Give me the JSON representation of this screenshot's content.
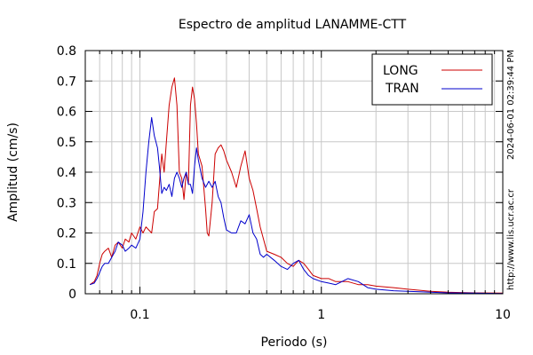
{
  "chart_data": {
    "type": "line",
    "title": "Espectro de amplitud LANAMME-CTT",
    "xlabel": "Periodo (s)",
    "ylabel": "Amplitud (cm/s)",
    "xscale": "log",
    "xlim": [
      0.05,
      10
    ],
    "ylim": [
      0,
      0.8
    ],
    "grid": true,
    "legend_position": "top-right",
    "x_tick_labels": [
      "0.1",
      "1",
      "10"
    ],
    "y_tick_labels": [
      "0",
      "0.1",
      "0.2",
      "0.3",
      "0.4",
      "0.5",
      "0.6",
      "0.7",
      "0.8"
    ],
    "side_text": "2024-06-01 02:39:44 PM",
    "url_text": "http://www.lis.ucr.ac.cr",
    "series": [
      {
        "name": "LONG",
        "color": "#cc0000",
        "points": [
          [
            0.053,
            0.03
          ],
          [
            0.056,
            0.04
          ],
          [
            0.058,
            0.06
          ],
          [
            0.06,
            0.1
          ],
          [
            0.062,
            0.13
          ],
          [
            0.064,
            0.14
          ],
          [
            0.067,
            0.15
          ],
          [
            0.07,
            0.12
          ],
          [
            0.073,
            0.16
          ],
          [
            0.076,
            0.17
          ],
          [
            0.08,
            0.15
          ],
          [
            0.083,
            0.18
          ],
          [
            0.087,
            0.17
          ],
          [
            0.09,
            0.2
          ],
          [
            0.095,
            0.18
          ],
          [
            0.1,
            0.22
          ],
          [
            0.104,
            0.2
          ],
          [
            0.108,
            0.22
          ],
          [
            0.112,
            0.21
          ],
          [
            0.116,
            0.2
          ],
          [
            0.12,
            0.27
          ],
          [
            0.125,
            0.28
          ],
          [
            0.128,
            0.36
          ],
          [
            0.132,
            0.46
          ],
          [
            0.136,
            0.4
          ],
          [
            0.14,
            0.5
          ],
          [
            0.145,
            0.62
          ],
          [
            0.15,
            0.68
          ],
          [
            0.155,
            0.71
          ],
          [
            0.16,
            0.62
          ],
          [
            0.165,
            0.4
          ],
          [
            0.17,
            0.38
          ],
          [
            0.175,
            0.31
          ],
          [
            0.18,
            0.4
          ],
          [
            0.185,
            0.36
          ],
          [
            0.19,
            0.62
          ],
          [
            0.195,
            0.68
          ],
          [
            0.2,
            0.64
          ],
          [
            0.205,
            0.56
          ],
          [
            0.21,
            0.46
          ],
          [
            0.22,
            0.42
          ],
          [
            0.23,
            0.28
          ],
          [
            0.235,
            0.2
          ],
          [
            0.24,
            0.19
          ],
          [
            0.25,
            0.3
          ],
          [
            0.26,
            0.46
          ],
          [
            0.27,
            0.48
          ],
          [
            0.28,
            0.49
          ],
          [
            0.29,
            0.47
          ],
          [
            0.3,
            0.44
          ],
          [
            0.32,
            0.4
          ],
          [
            0.34,
            0.35
          ],
          [
            0.36,
            0.42
          ],
          [
            0.38,
            0.47
          ],
          [
            0.4,
            0.38
          ],
          [
            0.42,
            0.34
          ],
          [
            0.44,
            0.28
          ],
          [
            0.46,
            0.22
          ],
          [
            0.48,
            0.18
          ],
          [
            0.5,
            0.14
          ],
          [
            0.55,
            0.13
          ],
          [
            0.6,
            0.12
          ],
          [
            0.65,
            0.1
          ],
          [
            0.7,
            0.09
          ],
          [
            0.75,
            0.11
          ],
          [
            0.8,
            0.1
          ],
          [
            0.85,
            0.08
          ],
          [
            0.9,
            0.06
          ],
          [
            1.0,
            0.05
          ],
          [
            1.1,
            0.05
          ],
          [
            1.2,
            0.04
          ],
          [
            1.4,
            0.04
          ],
          [
            1.6,
            0.03
          ],
          [
            1.8,
            0.03
          ],
          [
            2.0,
            0.025
          ],
          [
            2.5,
            0.02
          ],
          [
            3.0,
            0.015
          ],
          [
            4.0,
            0.008
          ],
          [
            5.0,
            0.005
          ],
          [
            7.0,
            0.003
          ],
          [
            10.0,
            0.002
          ]
        ]
      },
      {
        "name": "TRAN",
        "color": "#0000cc",
        "points": [
          [
            0.053,
            0.03
          ],
          [
            0.056,
            0.035
          ],
          [
            0.058,
            0.05
          ],
          [
            0.06,
            0.07
          ],
          [
            0.062,
            0.09
          ],
          [
            0.064,
            0.1
          ],
          [
            0.067,
            0.1
          ],
          [
            0.07,
            0.12
          ],
          [
            0.073,
            0.14
          ],
          [
            0.076,
            0.17
          ],
          [
            0.08,
            0.16
          ],
          [
            0.083,
            0.14
          ],
          [
            0.087,
            0.15
          ],
          [
            0.09,
            0.16
          ],
          [
            0.095,
            0.15
          ],
          [
            0.1,
            0.18
          ],
          [
            0.104,
            0.27
          ],
          [
            0.108,
            0.4
          ],
          [
            0.112,
            0.5
          ],
          [
            0.116,
            0.58
          ],
          [
            0.12,
            0.52
          ],
          [
            0.125,
            0.48
          ],
          [
            0.128,
            0.42
          ],
          [
            0.132,
            0.33
          ],
          [
            0.136,
            0.35
          ],
          [
            0.14,
            0.34
          ],
          [
            0.145,
            0.36
          ],
          [
            0.15,
            0.32
          ],
          [
            0.155,
            0.38
          ],
          [
            0.16,
            0.4
          ],
          [
            0.165,
            0.38
          ],
          [
            0.17,
            0.35
          ],
          [
            0.175,
            0.38
          ],
          [
            0.18,
            0.4
          ],
          [
            0.185,
            0.36
          ],
          [
            0.19,
            0.36
          ],
          [
            0.195,
            0.33
          ],
          [
            0.2,
            0.42
          ],
          [
            0.205,
            0.48
          ],
          [
            0.21,
            0.44
          ],
          [
            0.22,
            0.38
          ],
          [
            0.23,
            0.35
          ],
          [
            0.24,
            0.37
          ],
          [
            0.25,
            0.35
          ],
          [
            0.26,
            0.37
          ],
          [
            0.27,
            0.32
          ],
          [
            0.28,
            0.3
          ],
          [
            0.29,
            0.25
          ],
          [
            0.3,
            0.21
          ],
          [
            0.32,
            0.2
          ],
          [
            0.34,
            0.2
          ],
          [
            0.36,
            0.24
          ],
          [
            0.38,
            0.23
          ],
          [
            0.4,
            0.26
          ],
          [
            0.42,
            0.2
          ],
          [
            0.44,
            0.18
          ],
          [
            0.46,
            0.13
          ],
          [
            0.48,
            0.12
          ],
          [
            0.5,
            0.13
          ],
          [
            0.55,
            0.11
          ],
          [
            0.6,
            0.09
          ],
          [
            0.65,
            0.08
          ],
          [
            0.7,
            0.1
          ],
          [
            0.75,
            0.11
          ],
          [
            0.8,
            0.08
          ],
          [
            0.85,
            0.06
          ],
          [
            0.9,
            0.05
          ],
          [
            1.0,
            0.04
          ],
          [
            1.1,
            0.035
          ],
          [
            1.2,
            0.03
          ],
          [
            1.4,
            0.05
          ],
          [
            1.6,
            0.04
          ],
          [
            1.8,
            0.02
          ],
          [
            2.0,
            0.015
          ],
          [
            2.5,
            0.01
          ],
          [
            3.0,
            0.008
          ],
          [
            4.0,
            0.005
          ],
          [
            5.0,
            0.003
          ],
          [
            7.0,
            0.002
          ],
          [
            10.0,
            0.001
          ]
        ]
      }
    ]
  }
}
